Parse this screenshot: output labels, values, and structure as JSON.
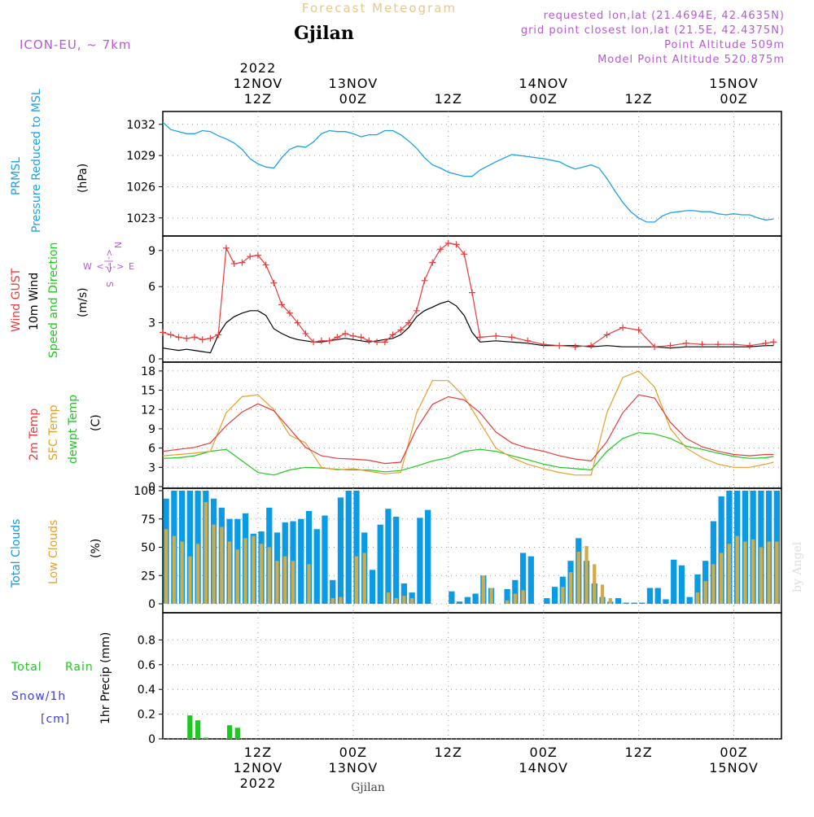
{
  "header": {
    "product_title": "Forecast Meteogram",
    "location": "Gjilan",
    "model": "ICON-EU, ~ 7km",
    "requested": "requested lon,lat (21.4694E, 42.4635N)",
    "grid": "grid point closest lon,lat (21.5E, 42.4375N)",
    "point_altitude": "Point Altitude 509m",
    "model_altitude": "Model Point Altitude 520.875m",
    "footer_location": "Gjilan",
    "watermark": "by Angel"
  },
  "time_axis": {
    "top_labels": [
      {
        "t": 12,
        "lines": [
          "2022",
          "12NOV",
          "12Z"
        ]
      },
      {
        "t": 24,
        "lines": [
          "13NOV",
          "00Z"
        ]
      },
      {
        "t": 36,
        "lines": [
          "12Z"
        ]
      },
      {
        "t": 48,
        "lines": [
          "14NOV",
          "00Z"
        ]
      },
      {
        "t": 60,
        "lines": [
          "12Z"
        ]
      },
      {
        "t": 72,
        "lines": [
          "15NOV",
          "00Z"
        ]
      }
    ],
    "bottom_labels": [
      {
        "t": 12,
        "lines": [
          "12Z",
          "12NOV",
          "2022"
        ]
      },
      {
        "t": 24,
        "lines": [
          "00Z",
          "13NOV"
        ]
      },
      {
        "t": 36,
        "lines": [
          "12Z"
        ]
      },
      {
        "t": 48,
        "lines": [
          "00Z",
          "14NOV"
        ]
      },
      {
        "t": 60,
        "lines": [
          "12Z"
        ]
      },
      {
        "t": 72,
        "lines": [
          "00Z",
          "15NOV"
        ]
      }
    ]
  },
  "panel_labels": {
    "prmsl": {
      "a": "PRMSL",
      "b": "Pressure Reduced to MSL",
      "unit": "(hPa)"
    },
    "wind": {
      "a": "Wind GUST",
      "b": "10m Wind",
      "c": "Speed and Direction",
      "unit": "(m/s)",
      "compass_n": "N",
      "compass_s": "S",
      "compass_we": "W <-|-> E",
      "compass_ns": "<-|->"
    },
    "temp": {
      "a": "2m Temp",
      "b": "SFC Temp",
      "c": "dewpt Temp",
      "unit": "(C)"
    },
    "cloud": {
      "a": "Total Clouds",
      "b": "Low Clouds",
      "unit": "(%)"
    },
    "precip": {
      "a": "Total",
      "b": "Rain",
      "c": "Snow/1h",
      "d": "[cm]",
      "unit": "1hr Precip (mm)"
    }
  },
  "colors": {
    "pressure": "#1ea0e6",
    "gust": "#e63c3c",
    "wind": "#000000",
    "temp2m": "#e63c3c",
    "sfc": "#e6a028",
    "dewpt": "#1ec81e",
    "total_cloud": "#0a9be6",
    "low_cloud": "#d2aa46",
    "rain": "#1ec81e",
    "snow": "#3c3ce6",
    "model": "#b45ad2",
    "title": "#e6c88c"
  },
  "chart_data": [
    {
      "type": "line",
      "name": "prmsl",
      "ylim": [
        1021.5,
        1033
      ],
      "yticks": [
        1023,
        1026,
        1029,
        1032
      ],
      "xlim": [
        0,
        78
      ],
      "x": [
        0,
        1,
        2,
        3,
        4,
        5,
        6,
        7,
        8,
        9,
        10,
        11,
        12,
        13,
        14,
        15,
        16,
        17,
        18,
        19,
        20,
        21,
        22,
        23,
        24,
        25,
        26,
        27,
        28,
        29,
        30,
        31,
        32,
        33,
        34,
        35,
        36,
        37,
        38,
        39,
        40,
        42,
        44,
        46,
        48,
        50,
        51,
        52,
        53,
        54,
        55,
        56,
        57,
        58,
        59,
        60,
        61,
        62,
        63,
        64,
        65,
        66,
        67,
        68,
        69,
        70,
        71,
        72,
        73,
        74,
        75,
        76,
        77
      ],
      "values": [
        1032.2,
        1031.5,
        1031.3,
        1031.1,
        1031.1,
        1031.4,
        1031.3,
        1030.9,
        1030.6,
        1030.2,
        1029.6,
        1028.7,
        1028.2,
        1027.9,
        1027.8,
        1028.8,
        1029.6,
        1029.9,
        1029.8,
        1030.3,
        1031.1,
        1031.4,
        1031.3,
        1031.3,
        1031.1,
        1030.8,
        1031.0,
        1031.0,
        1031.4,
        1031.4,
        1031.0,
        1030.4,
        1029.7,
        1028.8,
        1028.1,
        1027.8,
        1027.4,
        1027.2,
        1027.0,
        1027.0,
        1027.6,
        1028.4,
        1029.1,
        1028.9,
        1028.7,
        1028.4,
        1028.0,
        1027.7,
        1027.9,
        1028.1,
        1027.8,
        1026.8,
        1025.6,
        1024.5,
        1023.6,
        1023.0,
        1022.6,
        1022.6,
        1023.2,
        1023.5,
        1023.6,
        1023.7,
        1023.7,
        1023.6,
        1023.6,
        1023.4,
        1023.3,
        1023.4,
        1023.3,
        1023.3,
        1023.0,
        1022.8,
        1022.9
      ]
    },
    {
      "type": "line",
      "name": "wind",
      "ylim": [
        0,
        10
      ],
      "yticks": [
        0,
        3,
        6,
        9
      ],
      "xlim": [
        0,
        78
      ],
      "x": [
        0,
        1,
        2,
        3,
        4,
        5,
        6,
        7,
        8,
        9,
        10,
        11,
        12,
        13,
        14,
        15,
        16,
        17,
        18,
        19,
        20,
        21,
        22,
        23,
        24,
        25,
        26,
        27,
        28,
        29,
        30,
        31,
        32,
        33,
        34,
        35,
        36,
        37,
        38,
        39,
        40,
        42,
        44,
        46,
        48,
        50,
        52,
        54,
        56,
        58,
        60,
        62,
        64,
        66,
        68,
        70,
        72,
        74,
        76,
        77
      ],
      "gust": [
        2.2,
        2.0,
        1.8,
        1.7,
        1.8,
        1.6,
        1.7,
        2.0,
        9.2,
        7.9,
        8.0,
        8.5,
        8.6,
        7.8,
        6.3,
        4.5,
        3.8,
        3.0,
        2.1,
        1.4,
        1.5,
        1.5,
        1.8,
        2.1,
        1.9,
        1.8,
        1.5,
        1.4,
        1.4,
        2.0,
        2.4,
        3.0,
        4.0,
        6.5,
        8.0,
        9.1,
        9.6,
        9.5,
        8.7,
        5.5,
        1.8,
        1.9,
        1.8,
        1.5,
        1.2,
        1.1,
        1.0,
        1.1,
        2.0,
        2.6,
        2.4,
        1.0,
        1.1,
        1.3,
        1.2,
        1.2,
        1.2,
        1.1,
        1.3,
        1.4
      ],
      "speed": [
        0.9,
        0.8,
        0.7,
        0.8,
        0.7,
        0.6,
        0.5,
        2.0,
        3.0,
        3.5,
        3.8,
        4.0,
        4.0,
        3.6,
        2.5,
        2.1,
        1.8,
        1.6,
        1.5,
        1.4,
        1.4,
        1.5,
        1.6,
        1.7,
        1.6,
        1.5,
        1.4,
        1.5,
        1.6,
        1.7,
        2.0,
        2.6,
        3.5,
        4.0,
        4.3,
        4.6,
        4.8,
        4.4,
        3.6,
        2.2,
        1.4,
        1.5,
        1.4,
        1.3,
        1.1,
        1.1,
        1.1,
        1.0,
        1.1,
        1.0,
        1.0,
        1.0,
        0.9,
        1.0,
        1.0,
        1.0,
        1.0,
        1.0,
        1.1,
        1.1
      ]
    },
    {
      "type": "line",
      "name": "temperature",
      "ylim": [
        0,
        19
      ],
      "yticks": [
        0,
        3,
        6,
        9,
        12,
        15,
        18
      ],
      "xlim": [
        0,
        78
      ],
      "x": [
        0,
        2,
        4,
        6,
        8,
        10,
        12,
        14,
        16,
        18,
        20,
        22,
        24,
        26,
        28,
        30,
        32,
        34,
        36,
        38,
        40,
        42,
        44,
        46,
        48,
        50,
        52,
        54,
        56,
        58,
        60,
        62,
        64,
        66,
        68,
        70,
        72,
        74,
        76,
        77
      ],
      "t2m": [
        5.5,
        5.8,
        6.1,
        6.8,
        9.5,
        11.6,
        12.9,
        11.8,
        9.0,
        6.1,
        4.8,
        4.4,
        4.3,
        4.1,
        3.6,
        3.8,
        9.0,
        12.8,
        14.0,
        13.5,
        11.5,
        8.5,
        6.8,
        6.0,
        5.5,
        4.8,
        4.3,
        4.0,
        7.0,
        11.5,
        14.3,
        13.8,
        10.0,
        7.5,
        6.2,
        5.5,
        5.0,
        4.8,
        5.0,
        5.0
      ],
      "sfc": [
        4.8,
        5.0,
        5.2,
        5.5,
        11.5,
        14.0,
        14.3,
        12.0,
        8.0,
        6.8,
        3.0,
        2.6,
        2.8,
        2.4,
        2.0,
        2.2,
        11.5,
        16.5,
        16.5,
        14.0,
        10.0,
        6.0,
        4.5,
        3.5,
        2.8,
        2.2,
        1.8,
        1.8,
        11.5,
        17.0,
        18.0,
        15.5,
        9.0,
        6.0,
        4.5,
        3.5,
        3.0,
        3.0,
        3.5,
        3.8
      ],
      "dewpt": [
        4.4,
        4.5,
        4.8,
        5.5,
        5.8,
        4.0,
        2.2,
        1.8,
        2.6,
        3.0,
        2.9,
        2.7,
        2.6,
        2.6,
        2.3,
        2.5,
        3.2,
        4.0,
        4.5,
        5.5,
        5.8,
        5.5,
        4.8,
        4.2,
        3.5,
        3.0,
        2.8,
        2.6,
        5.5,
        7.5,
        8.4,
        8.2,
        7.5,
        6.3,
        5.8,
        5.2,
        4.7,
        4.4,
        4.5,
        4.7
      ]
    },
    {
      "type": "bar",
      "name": "clouds",
      "ylim": [
        0,
        100
      ],
      "yticks": [
        0,
        25,
        50,
        75,
        100
      ],
      "xlim": [
        0,
        78
      ],
      "x": [
        0,
        1,
        2,
        3,
        4,
        5,
        6,
        7,
        8,
        9,
        10,
        11,
        12,
        13,
        14,
        15,
        16,
        17,
        18,
        19,
        20,
        21,
        22,
        23,
        24,
        25,
        26,
        27,
        28,
        29,
        30,
        31,
        32,
        33,
        34,
        35,
        36,
        37,
        38,
        39,
        40,
        41,
        42,
        43,
        44,
        45,
        46,
        47,
        48,
        49,
        50,
        51,
        52,
        53,
        54,
        55,
        56,
        57,
        58,
        59,
        60,
        61,
        62,
        63,
        64,
        65,
        66,
        67,
        68,
        69,
        70,
        71,
        72,
        73,
        74,
        75,
        76,
        77
      ],
      "total": [
        93,
        100,
        100,
        100,
        100,
        100,
        93,
        85,
        75,
        75,
        80,
        62,
        64,
        85,
        63,
        72,
        73,
        75,
        82,
        66,
        78,
        21,
        94,
        100,
        100,
        63,
        30,
        70,
        84,
        77,
        18,
        10,
        76,
        83,
        0,
        0,
        11,
        2,
        6,
        9,
        25,
        14,
        0,
        13,
        21,
        45,
        42,
        0,
        5,
        15,
        24,
        38,
        58,
        38,
        18,
        6,
        2,
        5,
        1,
        1,
        1,
        14,
        14,
        4,
        39,
        34,
        6,
        26,
        38,
        73,
        95,
        100,
        100,
        100,
        100,
        100,
        100,
        100
      ],
      "low": [
        66,
        60,
        55,
        42,
        53,
        90,
        70,
        68,
        55,
        48,
        58,
        60,
        53,
        50,
        38,
        42,
        38,
        0,
        35,
        0,
        0,
        5,
        6,
        0,
        42,
        45,
        0,
        0,
        10,
        5,
        7,
        5,
        0,
        0,
        0,
        0,
        0,
        0,
        0,
        0,
        25,
        14,
        0,
        3,
        9,
        12,
        0,
        0,
        0,
        0,
        15,
        28,
        46,
        51,
        35,
        17,
        5,
        0,
        0,
        0,
        0,
        0,
        0,
        0,
        0,
        0,
        0,
        10,
        20,
        35,
        45,
        53,
        60,
        55,
        57,
        50,
        55,
        55
      ]
    },
    {
      "type": "bar",
      "name": "precip",
      "ylim": [
        0,
        1.0
      ],
      "yticks": [
        0,
        0.2,
        0.4,
        0.6,
        0.8
      ],
      "ytick_labels": [
        "0",
        "0.2",
        "0.4",
        "0.6",
        "0.8"
      ],
      "xlim": [
        0,
        78
      ],
      "x": [
        3,
        4,
        5,
        6,
        8,
        9
      ],
      "rain": [
        0.19,
        0.15,
        0.01,
        0,
        0.11,
        0.09
      ]
    }
  ]
}
